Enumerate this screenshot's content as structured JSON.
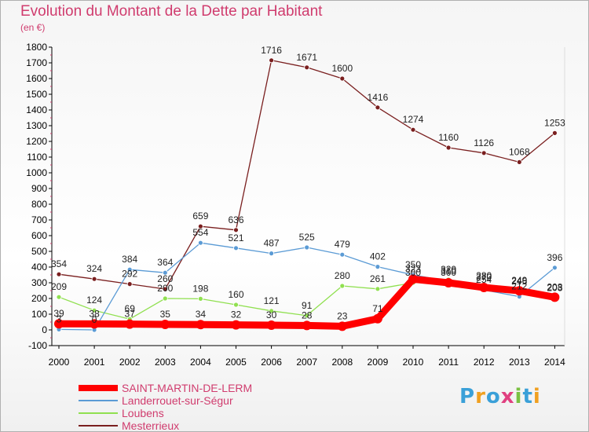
{
  "header": {
    "title": "Evolution du Montant de la Dette par Habitant",
    "unit": "(en €)"
  },
  "logo": {
    "letters": [
      "P",
      "r",
      "o",
      "x",
      "i",
      "t",
      "i"
    ],
    "colors": [
      "#3aa0d8",
      "#f0a020",
      "#3aa0d8",
      "#e04080",
      "#7ac143",
      "#3aa0d8",
      "#f0a020"
    ]
  },
  "chart_data": {
    "type": "line",
    "title": "Evolution du Montant de la Dette par Habitant",
    "ylabel": "(en €)",
    "xlabel": "",
    "ylim": [
      -100,
      1800
    ],
    "yticks": [
      -100,
      0,
      100,
      200,
      300,
      400,
      500,
      600,
      700,
      800,
      900,
      1000,
      1100,
      1200,
      1300,
      1400,
      1500,
      1600,
      1700,
      1800
    ],
    "x": [
      "2000",
      "2001",
      "2002",
      "2003",
      "2004",
      "2005",
      "2006",
      "2007",
      "2008",
      "2009",
      "2010",
      "2011",
      "2012",
      "2013",
      "2014"
    ],
    "grid": false,
    "legend_placement": "bottom-left",
    "series": [
      {
        "name": "SAINT-MARTIN-DE-LERM",
        "color": "#ff0000",
        "values": [
          39,
          38,
          37,
          35,
          34,
          32,
          30,
          28,
          23,
          71,
          323,
          300,
          270,
          249,
          208
        ]
      },
      {
        "name": "Landerrouet-sur-Ségur",
        "color": "#5b9bd5",
        "values": [
          3,
          0,
          384,
          364,
          554,
          521,
          487,
          525,
          479,
          402,
          350,
          310,
          254,
          212,
          396
        ]
      },
      {
        "name": "Loubens",
        "color": "#90e050",
        "values": [
          209,
          124,
          69,
          200,
          198,
          160,
          121,
          91,
          280,
          261,
          300,
          320,
          280,
          246,
          203
        ]
      },
      {
        "name": "Mesterrieux",
        "color": "#7a1f1f",
        "values": [
          354,
          324,
          292,
          260,
          659,
          636,
          1716,
          1671,
          1600,
          1416,
          1274,
          1160,
          1126,
          1068,
          1253
        ]
      }
    ]
  }
}
